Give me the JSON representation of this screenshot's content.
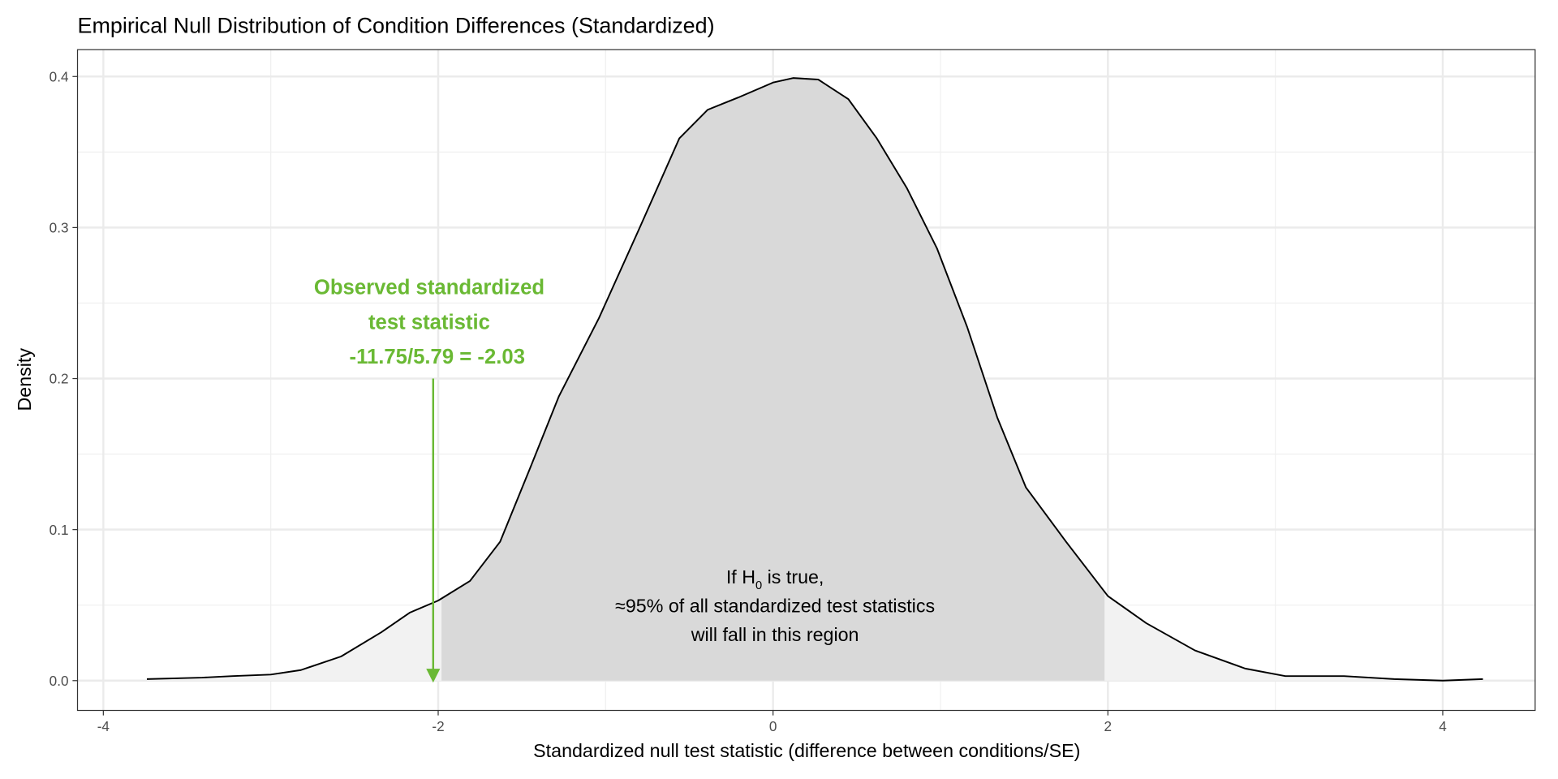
{
  "chart_data": {
    "type": "area",
    "title": "Empirical Null Distribution of Condition Differences (Standardized)",
    "xlabel": "Standardized null test statistic (difference between conditions/SE)",
    "ylabel": "Density",
    "xlim": [
      -4.15,
      4.5
    ],
    "ylim": [
      -0.02,
      0.42
    ],
    "x_ticks": [
      -4,
      -2,
      0,
      2,
      4
    ],
    "x_tick_labels": [
      "-4",
      "-2",
      "0",
      "2",
      "4"
    ],
    "y_ticks": [
      0,
      0.1,
      0.2,
      0.3,
      0.4
    ],
    "y_tick_labels": [
      "0.0",
      "0.1",
      "0.2",
      "0.3",
      "0.4"
    ],
    "grid": true,
    "central_region": [
      -1.98,
      1.98
    ],
    "fill_colors": {
      "tails": "#f2f2f2",
      "central": "#d9d9d9",
      "line": "#000000",
      "accent": "#6ab934"
    },
    "density": {
      "x": [
        -3.74,
        -3.41,
        -3.23,
        -3.0,
        -2.82,
        -2.58,
        -2.34,
        -2.17,
        -2.0,
        -1.81,
        -1.63,
        -1.45,
        -1.28,
        -1.04,
        -0.8,
        -0.56,
        -0.39,
        -0.21,
        0,
        0.12,
        0.27,
        0.45,
        0.62,
        0.8,
        0.98,
        1.16,
        1.34,
        1.51,
        1.75,
        2.0,
        2.23,
        2.52,
        2.82,
        3.06,
        3.41,
        3.71,
        4.0,
        4.24
      ],
      "y": [
        0.001,
        0.002,
        0.003,
        0.004,
        0.007,
        0.016,
        0.032,
        0.045,
        0.053,
        0.066,
        0.092,
        0.141,
        0.188,
        0.24,
        0.299,
        0.359,
        0.378,
        0.386,
        0.396,
        0.399,
        0.398,
        0.385,
        0.359,
        0.326,
        0.286,
        0.234,
        0.174,
        0.128,
        0.092,
        0.056,
        0.038,
        0.02,
        0.008,
        0.003,
        0.003,
        0.001,
        0.0,
        0.001
      ]
    },
    "observed": {
      "value": -2.03,
      "arrow_from_density": 0.2,
      "label_lines": [
        "Observed standardized",
        "test statistic",
        "-11.75/5.79 = -2.03"
      ]
    },
    "region_annotation": {
      "line1_prefix": "If H",
      "line1_sub": "0",
      "line1_suffix": " is true,",
      "line2": "≈95% of all standardized test statistics",
      "line3": "will fall in this region"
    }
  }
}
